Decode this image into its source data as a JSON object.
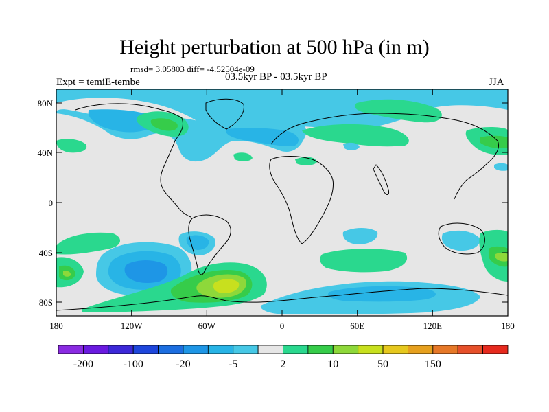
{
  "header": {
    "title": "Height perturbation at 500 hPa (in m)",
    "rmsd_line": "rmsd= 3.05803 diff= -4.52504e-09",
    "left_subtitle": "Expt = temiE-tembe",
    "center_subtitle": "03.5kyr BP - 03.5kyr BP",
    "right_subtitle": "JJA"
  },
  "axes": {
    "y_ticks": [
      "80N",
      "40N",
      "0",
      "40S",
      "80S"
    ],
    "x_ticks": [
      "180",
      "120W",
      "60W",
      "0",
      "60E",
      "120E",
      "180"
    ]
  },
  "colorbar": {
    "colors": [
      "#8a2be2",
      "#6a1ae0",
      "#3c28d8",
      "#1e46dc",
      "#1c6ee0",
      "#1e96e6",
      "#28b4e6",
      "#46c8e6",
      "#e6e6e6",
      "#2ad88e",
      "#36cc4a",
      "#8ed83a",
      "#c8e01e",
      "#e6c81e",
      "#e6a01e",
      "#e67828",
      "#e6502a",
      "#e62a1e"
    ],
    "labels": [
      "-200",
      "-100",
      "-20",
      "-5",
      "2",
      "10",
      "50",
      "150"
    ]
  },
  "map": {
    "ocean_land_background": "#e6e6e6",
    "coastline_color": "#000000"
  }
}
